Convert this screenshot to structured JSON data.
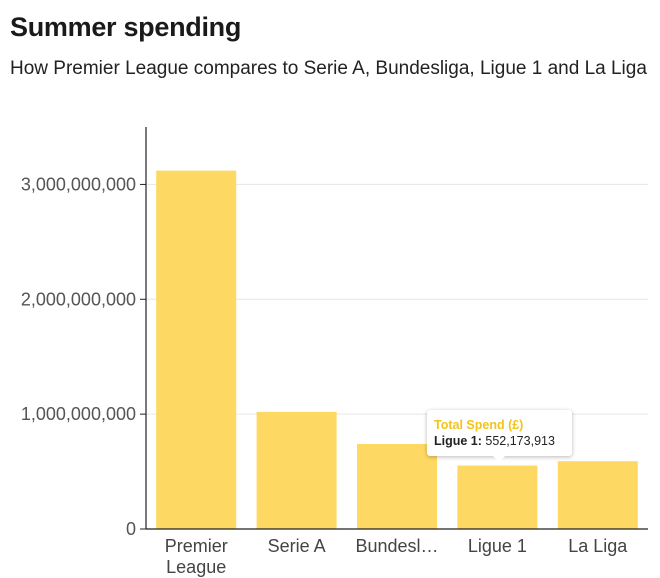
{
  "header": {
    "title": "Summer spending",
    "subtitle": "How Premier League compares to Serie A, Bundesliga, Ligue 1 and La Liga"
  },
  "colors": {
    "bar": "#fdd862",
    "tooltip_title": "#f2c41a",
    "axis": "#222222",
    "grid": "#e6e6e6"
  },
  "chart_data": {
    "type": "bar",
    "title": "Summer spending",
    "subtitle": "How Premier League compares to Serie A, Bundesliga, Ligue 1 and La Liga",
    "xlabel": "",
    "ylabel": "",
    "categories": [
      "Premier League",
      "Serie A",
      "Bundesliga",
      "Ligue 1",
      "La Liga"
    ],
    "category_display": [
      [
        "Premier",
        "League"
      ],
      [
        "Serie A"
      ],
      [
        "Bundesl…"
      ],
      [
        "Ligue 1"
      ],
      [
        "La Liga"
      ]
    ],
    "series": [
      {
        "name": "Total Spend (£)",
        "values": [
          3120000000,
          1020000000,
          740000000,
          552173913,
          590000000
        ]
      }
    ],
    "ylim": [
      0,
      3500000000
    ],
    "yticks": [
      0,
      1000000000,
      2000000000,
      3000000000
    ],
    "ytick_labels": [
      "0",
      "1,000,000,000",
      "2,000,000,000",
      "3,000,000,000"
    ],
    "grid": true,
    "legend": "none"
  },
  "tooltip": {
    "title": "Total Spend (£)",
    "category": "Ligue 1:",
    "value": "552,173,913"
  }
}
